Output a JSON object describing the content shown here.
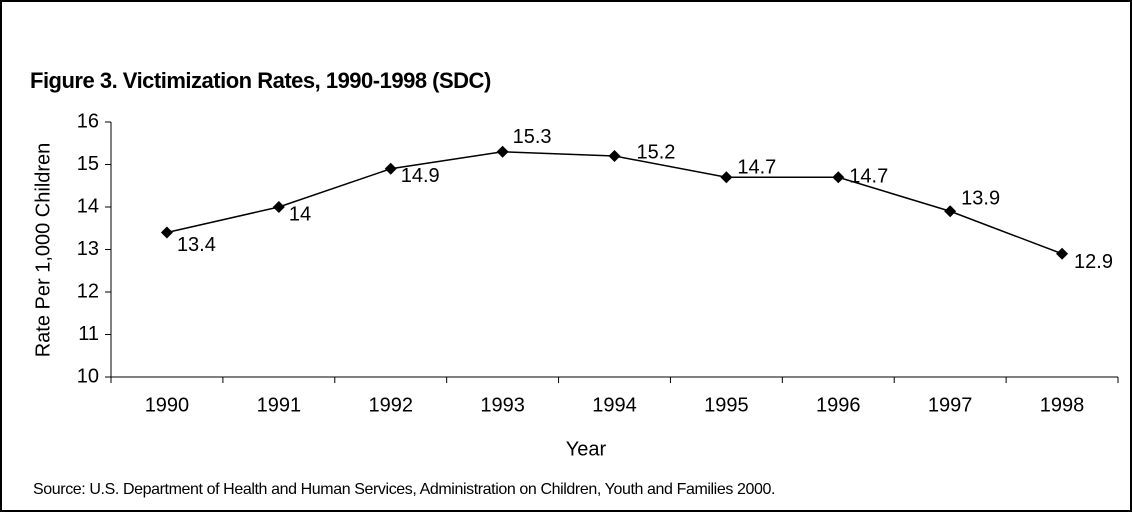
{
  "chart_data": {
    "type": "line",
    "title": "Figure 3.  Victimization Rates, 1990-1998 (SDC)",
    "y_label": "Rate Per 1,000 Children",
    "x_label": "Year",
    "source": "Source: U.S. Department of Health and Human Services, Administration on Children, Youth and Families 2000.",
    "categories": [
      "1990",
      "1991",
      "1992",
      "1993",
      "1994",
      "1995",
      "1996",
      "1997",
      "1998"
    ],
    "values": [
      13.4,
      14,
      14.9,
      15.3,
      15.2,
      14.7,
      14.7,
      13.9,
      12.9
    ],
    "color": "#000000",
    "ylim": [
      10,
      16
    ],
    "yticks": [
      10,
      11,
      12,
      13,
      14,
      15,
      16
    ],
    "grid": false
  }
}
